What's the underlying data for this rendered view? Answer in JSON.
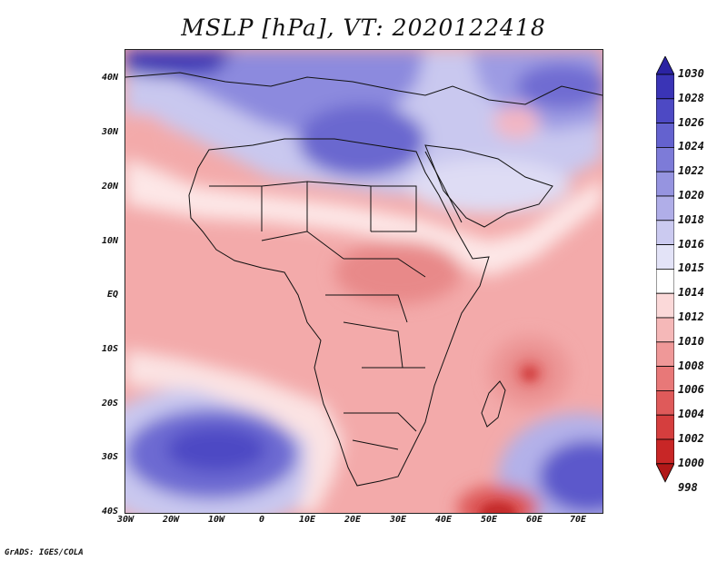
{
  "title": "MSLP [hPa], VT: 2020122418",
  "credit": "GrADS: IGES/COLA",
  "map": {
    "lat_labels": [
      "40N",
      "30N",
      "20N",
      "10N",
      "EQ",
      "10S",
      "20S",
      "30S",
      "40S"
    ],
    "lon_labels": [
      "30W",
      "20W",
      "10W",
      "0",
      "10E",
      "20E",
      "30E",
      "40E",
      "50E",
      "60E",
      "70E"
    ],
    "extent": {
      "lon_min": -30,
      "lon_max": 75,
      "lat_min": -40,
      "lat_max": 45
    }
  },
  "colorbar": {
    "labels": [
      "1030",
      "1028",
      "1026",
      "1024",
      "1022",
      "1020",
      "1018",
      "1016",
      "1015",
      "1014",
      "1012",
      "1010",
      "1008",
      "1006",
      "1004",
      "1002",
      "1000",
      "998"
    ],
    "colors": [
      "#2b23a3",
      "#3a34b6",
      "#4d49c4",
      "#6462cf",
      "#7d7bd8",
      "#9694e0",
      "#b0aee8",
      "#cbcaf0",
      "#e3e3f7",
      "#ffffff",
      "#fbd9d9",
      "#f5b8b8",
      "#ef9898",
      "#e87878",
      "#df5a5a",
      "#d53e3e",
      "#c82626",
      "#b11818"
    ]
  },
  "legend_colors": {
    "high": "#2b23a3",
    "low": "#b11818",
    "coast": "#111111"
  }
}
